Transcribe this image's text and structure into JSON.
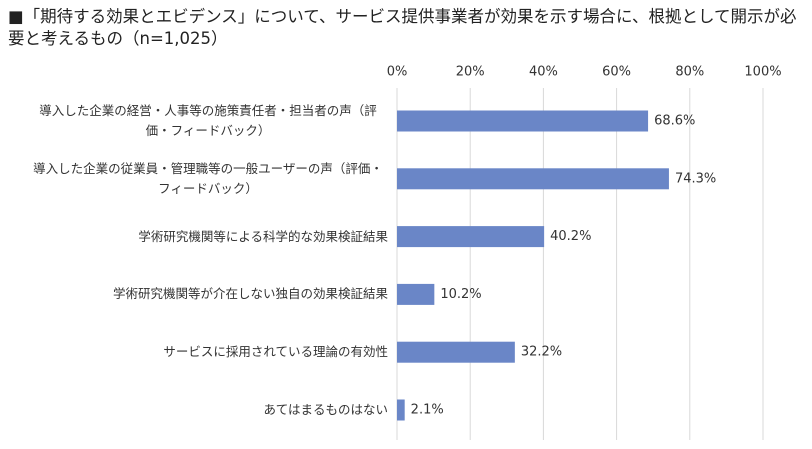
{
  "chart_data": {
    "type": "barh",
    "title": "■「期待する効果とエビデンス」について、サービス提供事業者が効果を示す場合に、根拠として開示が必要と考えるもの（n=1,025）",
    "categories": [
      "導入した企業の経営・人事等の施策責任者・担当者の声（評価・フィードバック）",
      "導入した企業の従業員・管理職等の一般ユーザーの声（評価・フィードバック）",
      "学術研究機関等による科学的な効果検証結果",
      "学術研究機関等が介在しない独自の効果検証結果",
      "サービスに採用されている理論の有効性",
      "あてはまるものはない"
    ],
    "values": [
      68.6,
      74.3,
      40.2,
      10.2,
      32.2,
      2.1
    ],
    "value_labels": [
      "68.6%",
      "74.3%",
      "40.2%",
      "10.2%",
      "32.2%",
      "2.1%"
    ],
    "color": "#6a86c7",
    "xlim": [
      0,
      100
    ],
    "xticks": [
      {
        "value": 0,
        "label": "0%"
      },
      {
        "value": 20,
        "label": "20%"
      },
      {
        "value": 40,
        "label": "40%"
      },
      {
        "value": 60,
        "label": "60%"
      },
      {
        "value": 80,
        "label": "80%"
      },
      {
        "value": 100,
        "label": "100%"
      }
    ],
    "grid": true
  }
}
